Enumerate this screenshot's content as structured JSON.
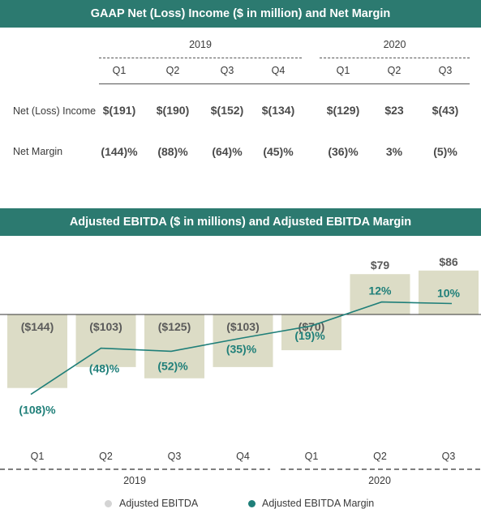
{
  "table": {
    "title": "GAAP Net (Loss) Income ($ in million) and Net Margin",
    "years": [
      {
        "label": "2019",
        "quarters": [
          "Q1",
          "Q2",
          "Q3",
          "Q4"
        ]
      },
      {
        "label": "2020",
        "quarters": [
          "Q1",
          "Q2",
          "Q3"
        ]
      }
    ],
    "rows": [
      {
        "label": "Net (Loss) Income",
        "values": [
          "$(191)",
          "$(190)",
          "$(152)",
          "$(134)",
          "$(129)",
          "$23",
          "$(43)"
        ]
      },
      {
        "label": "Net Margin",
        "values": [
          "(144)%",
          "(88)%",
          "(64)%",
          "(45)%",
          "(36)%",
          "3%",
          "(5)%"
        ]
      }
    ]
  },
  "chart_data": {
    "type": "bar",
    "title": "Adjusted EBITDA ($ in millions) and Adjusted EBITDA Margin",
    "categories": [
      "Q1",
      "Q2",
      "Q3",
      "Q4",
      "Q1",
      "Q2",
      "Q3"
    ],
    "year_groups": [
      {
        "label": "2019",
        "count": 4
      },
      {
        "label": "2020",
        "count": 3
      }
    ],
    "series": [
      {
        "name": "Adjusted EBITDA",
        "type": "bar",
        "values": [
          -144,
          -103,
          -125,
          -103,
          -70,
          79,
          86
        ],
        "labels": [
          "($144)",
          "($103)",
          "($125)",
          "($103)",
          "($70)",
          "$79",
          "$86"
        ],
        "color": "#dcdcc6"
      },
      {
        "name": "Adjusted EBITDA Margin",
        "type": "line",
        "values": [
          -108,
          -48,
          -52,
          -35,
          -19,
          12,
          10
        ],
        "labels": [
          "(108)%",
          "(48)%",
          "(52)%",
          "(35)%",
          "(19)%",
          "12%",
          "10%"
        ],
        "color": "#1f7f79"
      }
    ]
  },
  "legend": {
    "bar_label": "Adjusted EBITDA",
    "line_label": "Adjusted EBITDA Margin",
    "bar_color": "#d4d4d4",
    "line_color": "#1f7f79"
  }
}
